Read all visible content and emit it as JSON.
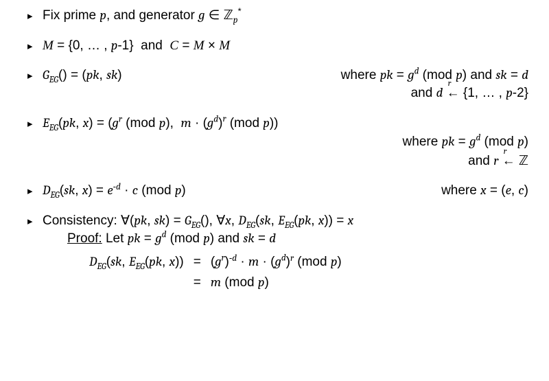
{
  "colors": {
    "text": "#000000",
    "background": "#ffffff",
    "bullet": "#000000"
  },
  "fontsize_pt": 19,
  "bullets": {
    "b1": {
      "text_html": "Fix prime <span class='it'>p</span>, and generator <span class='it'>g</span> &isin; <span class='bb'>&#8484;</span><sub><span class='it'>p</span></sub><sup>*</sup>"
    },
    "b2": {
      "text_html": "<span class='cal'>M</span> = {0, &hellip; , <span class='it'>p</span>-1} &nbsp;and&nbsp; <span class='cal'>C</span> = <span class='cal'>M</span> &times; <span class='cal'>M</span>"
    },
    "b3": {
      "left_html": "<span class='it'>G<sub>EG</sub></span>() = (<span class='it'>pk</span>, <span class='it'>sk</span>)",
      "right1_html": "where <span class='it'>pk</span> = <span class='it'>g<sup>d</sup></span> (mod <span class='it'>p</span>) and <span class='it'>sk</span> = <span class='it'>d</span>",
      "right2_html": "and <span class='it'>d</span> <span style='position:relative;'>&larr;<span style='position:absolute; left:2px; top:-0.85em; font-size:0.65em;' class='it'>r</span></span> {1, &hellip; , <span class='it'>p</span>-2}"
    },
    "b4": {
      "top_html": "<span class='it'>E<sub>EG</sub></span>(<span class='it'>pk</span>, <span class='it'>x</span>) = (<span class='it'>g<sup>r</sup></span> (mod <span class='it'>p</span>),&nbsp; <span class='it'>m</span> &middot; (<span class='it'>g<sup>d</sup></span>)<sup><span class='it'>r</span></sup> (mod <span class='it'>p</span>))",
      "right1_html": "where <span class='it'>pk</span> = <span class='it'>g<sup>d</sup></span> (mod <span class='it'>p</span>)",
      "right2_html": "and <span class='it'>r</span> <span style='position:relative;'>&larr;<span style='position:absolute; left:2px; top:-0.85em; font-size:0.65em;' class='it'>r</span></span> <span class='bb'>&#8484;</span>"
    },
    "b5": {
      "left_html": "<span class='it'>D<sub>EG</sub></span>(<span class='it'>sk</span>, <span class='it'>x</span>) = <span class='it'>e</span><sup>-<span class='it'>d</span></sup> &middot; <span class='it'>c</span> (mod <span class='it'>p</span>)",
      "right_html": "where <span class='it'>x</span> = (<span class='it'>e</span>, <span class='it'>c</span>)"
    },
    "b6": {
      "line1_html": "Consistency: &forall;(<span class='it'>pk</span>, <span class='it'>sk</span>) = <span class='it'>G<sub>EG</sub></span>(), &forall;<span class='it'>x</span>, <span class='it'>D<sub>EG</sub></span>(<span class='it'>sk</span>, <span class='it'>E<sub>EG</sub></span>(<span class='it'>pk</span>, <span class='it'>x</span>)) = <span class='it'>x</span>",
      "proof_html": "<span class='underline'>Proof:</span> Let <span class='it'>pk</span> = <span class='it'>g<sup>d</sup></span> (mod <span class='it'>p</span>) and <span class='it'>sk</span> = <span class='it'>d</span>",
      "eq_lhs": "<span class='it'>D<sub>EG</sub></span>(<span class='it'>sk</span>, <span class='it'>E<sub>EG</sub></span>(<span class='it'>pk</span>, <span class='it'>x</span>))",
      "eq_rhs1": "(<span class='it'>g<sup>r</sup></span>)<sup>-<span class='it'>d</span></sup> &middot; <span class='it'>m</span> &middot; (<span class='it'>g<sup>d</sup></span>)<sup><span class='it'>r</span></sup> (mod <span class='it'>p</span>)",
      "eq_rhs2": "<span class='it'>m</span> (mod <span class='it'>p</span>)"
    }
  },
  "bullet_glyph": "▸"
}
